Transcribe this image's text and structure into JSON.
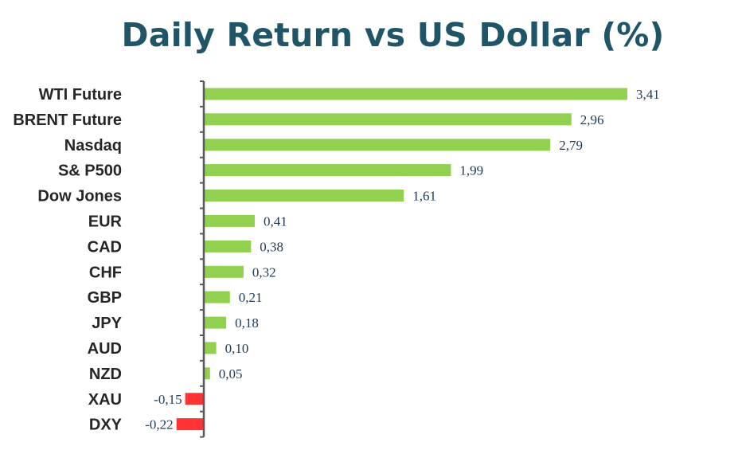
{
  "title": "Daily Return vs US Dollar (%)",
  "chart_data": {
    "type": "bar",
    "orientation": "horizontal",
    "title": "Daily Return vs US Dollar (%)",
    "categories": [
      "WTI Future",
      "BRENT Future",
      "Nasdaq",
      "S& P500",
      "Dow Jones",
      "EUR",
      "CAD",
      "CHF",
      "GBP",
      "JPY",
      "AUD",
      "NZD",
      "XAU",
      "DXY"
    ],
    "values": [
      3.41,
      2.96,
      2.79,
      1.99,
      1.61,
      0.41,
      0.38,
      0.32,
      0.21,
      0.18,
      0.1,
      0.05,
      -0.15,
      -0.22
    ],
    "value_labels": [
      "3,41",
      "2,96",
      "2,79",
      "1,99",
      "1,61",
      "0,41",
      "0,38",
      "0,32",
      "0,21",
      "0,18",
      "0,10",
      "0,05",
      "-0,15",
      "-0,22"
    ],
    "xlim": [
      -0.22,
      3.41
    ],
    "grid": false,
    "legend": "none",
    "colors": {
      "positive": "#92d050",
      "negative": "#ff3333",
      "title": "#1f5566",
      "axis": "#595959",
      "value_text": "#1f3b57",
      "category_text": "#262626"
    }
  }
}
